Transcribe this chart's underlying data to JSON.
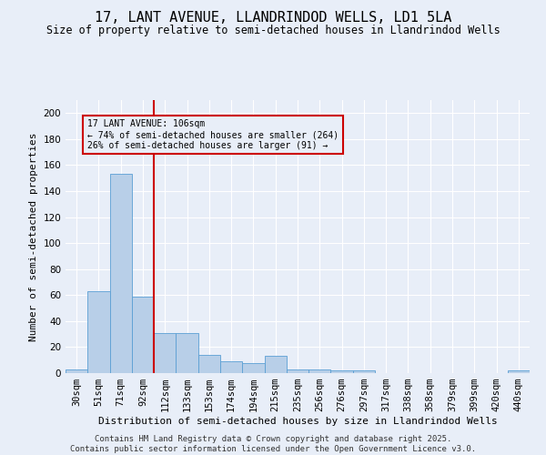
{
  "title": "17, LANT AVENUE, LLANDRINDOD WELLS, LD1 5LA",
  "subtitle": "Size of property relative to semi-detached houses in Llandrindod Wells",
  "xlabel": "Distribution of semi-detached houses by size in Llandrindod Wells",
  "ylabel": "Number of semi-detached properties",
  "categories": [
    "30sqm",
    "51sqm",
    "71sqm",
    "92sqm",
    "112sqm",
    "133sqm",
    "153sqm",
    "174sqm",
    "194sqm",
    "215sqm",
    "235sqm",
    "256sqm",
    "276sqm",
    "297sqm",
    "317sqm",
    "338sqm",
    "358sqm",
    "379sqm",
    "399sqm",
    "420sqm",
    "440sqm"
  ],
  "values": [
    3,
    63,
    153,
    59,
    31,
    31,
    14,
    9,
    8,
    13,
    3,
    3,
    2,
    2,
    0,
    0,
    0,
    0,
    0,
    0,
    2
  ],
  "bar_color": "#b8cfe8",
  "bar_edge_color": "#5a9fd4",
  "vline_color": "#cc0000",
  "annotation_text": "17 LANT AVENUE: 106sqm\n← 74% of semi-detached houses are smaller (264)\n26% of semi-detached houses are larger (91) →",
  "annotation_box_color": "#cc0000",
  "ylim": [
    0,
    210
  ],
  "yticks": [
    0,
    20,
    40,
    60,
    80,
    100,
    120,
    140,
    160,
    180,
    200
  ],
  "footer": "Contains HM Land Registry data © Crown copyright and database right 2025.\nContains public sector information licensed under the Open Government Licence v3.0.",
  "background_color": "#e8eef8",
  "grid_color": "#ffffff",
  "title_fontsize": 11,
  "subtitle_fontsize": 8.5,
  "axis_label_fontsize": 8,
  "tick_fontsize": 7.5,
  "footer_fontsize": 6.5
}
